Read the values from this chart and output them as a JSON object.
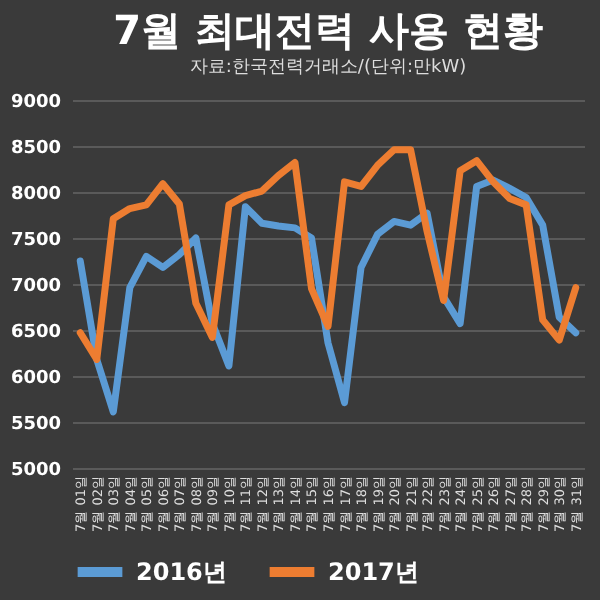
{
  "chart_data": {
    "type": "line",
    "title": "7월 최대전력 사용 현황",
    "subtitle": "자료:한국전력거래소/(단위:만kW)",
    "categories": [
      "7월 01일",
      "7월 02일",
      "7월 03일",
      "7월 04일",
      "7월 05일",
      "7월 06일",
      "7월 07일",
      "7월 08일",
      "7월 09일",
      "7월 10일",
      "7월 11일",
      "7월 12일",
      "7월 13일",
      "7월 14일",
      "7월 15일",
      "7월 16일",
      "7월 17일",
      "7월 18일",
      "7월 19일",
      "7월 20일",
      "7월 21일",
      "7월 22일",
      "7월 23일",
      "7월 24일",
      "7월 25일",
      "7월 26일",
      "7월 27일",
      "7월 28일",
      "7월 29일",
      "7월 30일",
      "7월 31일"
    ],
    "series": [
      {
        "name": "2016년",
        "color": "#5b9bd5",
        "values": [
          7250,
          6180,
          5610,
          6960,
          7300,
          7180,
          7320,
          7500,
          6570,
          6110,
          7840,
          7660,
          7630,
          7610,
          7500,
          6360,
          5710,
          7180,
          7540,
          7680,
          7640,
          7770,
          6860,
          6570,
          8060,
          8130,
          8040,
          7940,
          7640,
          6640,
          6470
        ]
      },
      {
        "name": "2017년",
        "color": "#ed7d31",
        "values": [
          6470,
          6180,
          7710,
          7820,
          7860,
          8090,
          7870,
          6790,
          6420,
          7860,
          7960,
          8010,
          8180,
          8320,
          6950,
          6540,
          8110,
          8060,
          8290,
          8460,
          8460,
          7570,
          6820,
          8230,
          8340,
          8110,
          7930,
          7860,
          6610,
          6390,
          6960
        ]
      }
    ],
    "ylim": [
      5000,
      9000
    ],
    "yticks": [
      5000,
      5500,
      6000,
      6500,
      7000,
      7500,
      8000,
      8500,
      9000
    ],
    "grid": "y",
    "legend": "bottom",
    "line_style": "solid",
    "marker": "none"
  }
}
